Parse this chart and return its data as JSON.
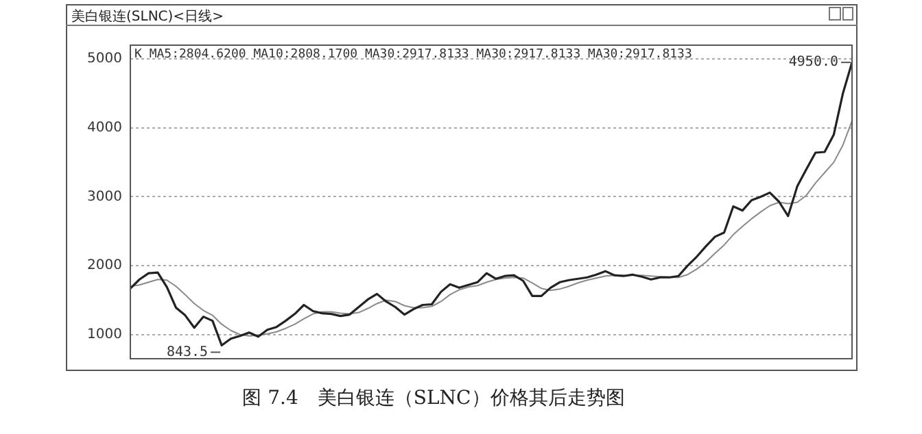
{
  "chart_data": {
    "type": "line",
    "title": "美白银连(SLNC)<日线>",
    "annotations": [
      "K MA5:2804.6200 MA10:2808.1700 MA30:2917.8133 MA30:2917.8133 MA30:2917.8133",
      "图 7.4　美白银连（SLNC）价格其后走势图",
      "843.5",
      "4950.0"
    ],
    "categories": [
      null,
      null,
      null,
      null,
      null,
      null,
      null,
      null,
      null,
      null,
      null,
      null,
      null,
      null,
      null,
      null,
      null,
      null,
      null,
      null,
      null,
      null,
      null,
      null,
      null,
      null,
      null,
      null,
      null,
      null,
      null,
      null,
      null,
      null,
      null,
      null,
      null,
      null,
      null,
      null,
      null,
      null,
      null,
      null,
      null,
      null,
      null,
      null,
      null,
      null,
      null,
      null,
      null,
      null,
      null,
      null,
      null,
      null,
      null,
      null,
      null,
      null,
      null,
      null,
      null,
      null,
      null,
      null,
      null,
      null,
      null,
      null,
      null,
      null,
      null,
      null,
      null,
      null,
      null,
      null
    ],
    "series": [
      {
        "color": "#222222",
        "values": [
          1670,
          1800,
          1890,
          1900,
          1690,
          1390,
          1280,
          1100,
          1260,
          1200,
          843.5,
          940,
          980,
          1030,
          970,
          1070,
          1110,
          1200,
          1300,
          1430,
          1340,
          1310,
          1300,
          1270,
          1290,
          1400,
          1510,
          1590,
          1480,
          1400,
          1290,
          1370,
          1430,
          1440,
          1620,
          1730,
          1680,
          1720,
          1760,
          1890,
          1810,
          1850,
          1860,
          1780,
          1560,
          1560,
          1680,
          1760,
          1790,
          1810,
          1830,
          1870,
          1920,
          1860,
          1850,
          1870,
          1840,
          1800,
          1830,
          1830,
          1850,
          2000,
          2130,
          2280,
          2420,
          2480,
          2860,
          2800,
          2950,
          3000,
          3060,
          2930,
          2720,
          3150,
          3400,
          3640,
          3650,
          3900,
          4500,
          4950
        ]
      },
      {
        "color": "#8a8a8a",
        "values": [
          1700,
          1720,
          1760,
          1800,
          1790,
          1700,
          1580,
          1450,
          1350,
          1280,
          1150,
          1060,
          1000,
          980,
          990,
          1010,
          1040,
          1090,
          1150,
          1230,
          1300,
          1330,
          1330,
          1310,
          1300,
          1320,
          1380,
          1450,
          1500,
          1480,
          1420,
          1390,
          1390,
          1410,
          1480,
          1580,
          1650,
          1690,
          1710,
          1760,
          1800,
          1820,
          1830,
          1820,
          1750,
          1670,
          1640,
          1660,
          1700,
          1750,
          1790,
          1820,
          1850,
          1860,
          1860,
          1860,
          1860,
          1850,
          1840,
          1830,
          1830,
          1870,
          1950,
          2050,
          2180,
          2300,
          2450,
          2570,
          2680,
          2780,
          2870,
          2920,
          2900,
          2920,
          3020,
          3200,
          3350,
          3500,
          3750,
          4100
        ]
      }
    ],
    "ylim": [
      650,
      5200
    ],
    "yticks": [
      1000,
      2000,
      3000,
      4000,
      5000
    ],
    "grid": "y",
    "legend": false,
    "tick_labels": "y",
    "marker": "none",
    "line_style": "solid"
  }
}
